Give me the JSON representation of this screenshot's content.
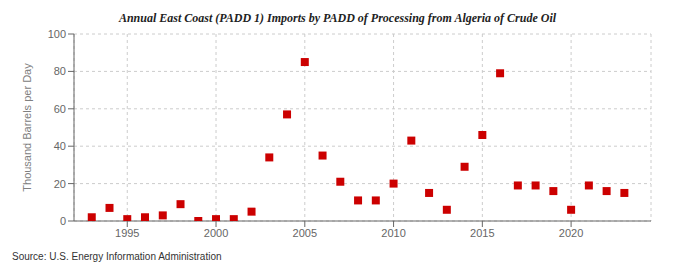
{
  "chart_data": {
    "type": "scatter",
    "title": "Annual East Coast (PADD 1) Imports by PADD of Processing from Algeria of Crude Oil",
    "ylabel": "Thousand Barrels per Day",
    "source": "Source: U.S. Energy Information Administration",
    "color": "#cc0000",
    "marker": "square",
    "x": [
      1993,
      1994,
      1995,
      1996,
      1997,
      1998,
      1999,
      2000,
      2001,
      2002,
      2003,
      2004,
      2005,
      2006,
      2007,
      2008,
      2009,
      2010,
      2011,
      2012,
      2013,
      2014,
      2015,
      2016,
      2017,
      2018,
      2019,
      2020,
      2021,
      2022,
      2023
    ],
    "values": [
      2,
      7,
      1,
      2,
      3,
      9,
      0,
      1,
      1,
      5,
      34,
      57,
      85,
      35,
      21,
      11,
      11,
      20,
      43,
      15,
      6,
      29,
      46,
      79,
      19,
      19,
      16,
      6,
      19,
      16,
      15
    ],
    "xlim": [
      1992.0,
      2024.5
    ],
    "ylim": [
      0,
      100
    ],
    "xticks": [
      1995,
      2000,
      2005,
      2010,
      2015,
      2020
    ],
    "yticks": [
      0,
      20,
      40,
      60,
      80,
      100
    ],
    "grid": true
  }
}
